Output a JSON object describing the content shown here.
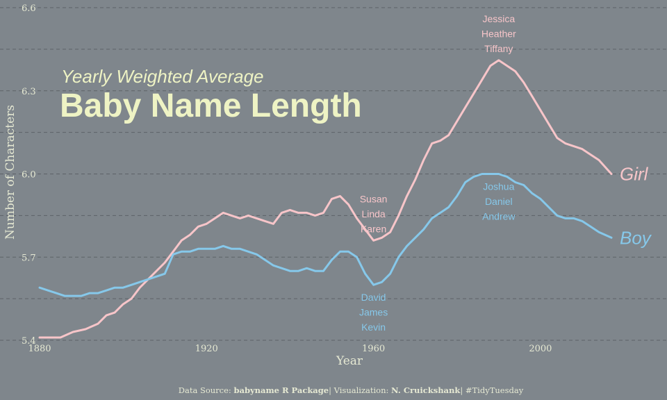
{
  "chart_data": {
    "type": "line",
    "subtitle": "Yearly Weighted Average",
    "title": "Baby Name Length",
    "xlabel": "Year",
    "ylabel": "Number of Characters",
    "xlim": [
      1880,
      2017
    ],
    "ylim": [
      5.4,
      6.6
    ],
    "x_ticks": [
      "1880",
      "1920",
      "1960",
      "2000"
    ],
    "y_ticks": [
      "5.4",
      "5.7",
      "6.0",
      "6.3",
      "6.6"
    ],
    "grid": "horizontal dashed",
    "series": [
      {
        "name": "Girl",
        "color": "#f7c5c9",
        "points": [
          [
            1880,
            5.41
          ],
          [
            1882,
            5.41
          ],
          [
            1885,
            5.41
          ],
          [
            1888,
            5.43
          ],
          [
            1891,
            5.44
          ],
          [
            1894,
            5.46
          ],
          [
            1896,
            5.49
          ],
          [
            1898,
            5.5
          ],
          [
            1900,
            5.53
          ],
          [
            1902,
            5.55
          ],
          [
            1904,
            5.59
          ],
          [
            1906,
            5.62
          ],
          [
            1908,
            5.65
          ],
          [
            1910,
            5.68
          ],
          [
            1912,
            5.72
          ],
          [
            1914,
            5.76
          ],
          [
            1916,
            5.78
          ],
          [
            1918,
            5.81
          ],
          [
            1920,
            5.82
          ],
          [
            1922,
            5.84
          ],
          [
            1924,
            5.86
          ],
          [
            1926,
            5.85
          ],
          [
            1928,
            5.84
          ],
          [
            1930,
            5.85
          ],
          [
            1932,
            5.84
          ],
          [
            1934,
            5.83
          ],
          [
            1936,
            5.82
          ],
          [
            1938,
            5.86
          ],
          [
            1940,
            5.87
          ],
          [
            1942,
            5.86
          ],
          [
            1944,
            5.86
          ],
          [
            1946,
            5.85
          ],
          [
            1948,
            5.86
          ],
          [
            1950,
            5.91
          ],
          [
            1952,
            5.92
          ],
          [
            1954,
            5.89
          ],
          [
            1956,
            5.84
          ],
          [
            1958,
            5.8
          ],
          [
            1960,
            5.76
          ],
          [
            1962,
            5.77
          ],
          [
            1964,
            5.79
          ],
          [
            1966,
            5.85
          ],
          [
            1968,
            5.92
          ],
          [
            1970,
            5.98
          ],
          [
            1972,
            6.05
          ],
          [
            1974,
            6.11
          ],
          [
            1976,
            6.12
          ],
          [
            1978,
            6.14
          ],
          [
            1980,
            6.19
          ],
          [
            1982,
            6.24
          ],
          [
            1984,
            6.29
          ],
          [
            1986,
            6.34
          ],
          [
            1988,
            6.39
          ],
          [
            1990,
            6.41
          ],
          [
            1992,
            6.39
          ],
          [
            1994,
            6.37
          ],
          [
            1996,
            6.33
          ],
          [
            1998,
            6.28
          ],
          [
            2000,
            6.23
          ],
          [
            2002,
            6.18
          ],
          [
            2004,
            6.13
          ],
          [
            2006,
            6.11
          ],
          [
            2008,
            6.1
          ],
          [
            2010,
            6.09
          ],
          [
            2012,
            6.07
          ],
          [
            2014,
            6.05
          ],
          [
            2017,
            6.0
          ]
        ]
      },
      {
        "name": "Boy",
        "color": "#86c8ea",
        "points": [
          [
            1880,
            5.59
          ],
          [
            1882,
            5.58
          ],
          [
            1884,
            5.57
          ],
          [
            1886,
            5.56
          ],
          [
            1888,
            5.56
          ],
          [
            1890,
            5.56
          ],
          [
            1892,
            5.57
          ],
          [
            1894,
            5.57
          ],
          [
            1896,
            5.58
          ],
          [
            1898,
            5.59
          ],
          [
            1900,
            5.59
          ],
          [
            1902,
            5.6
          ],
          [
            1904,
            5.61
          ],
          [
            1906,
            5.62
          ],
          [
            1908,
            5.63
          ],
          [
            1910,
            5.64
          ],
          [
            1912,
            5.71
          ],
          [
            1914,
            5.72
          ],
          [
            1916,
            5.72
          ],
          [
            1918,
            5.73
          ],
          [
            1920,
            5.73
          ],
          [
            1922,
            5.73
          ],
          [
            1924,
            5.74
          ],
          [
            1926,
            5.73
          ],
          [
            1928,
            5.73
          ],
          [
            1930,
            5.72
          ],
          [
            1932,
            5.71
          ],
          [
            1934,
            5.69
          ],
          [
            1936,
            5.67
          ],
          [
            1938,
            5.66
          ],
          [
            1940,
            5.65
          ],
          [
            1942,
            5.65
          ],
          [
            1944,
            5.66
          ],
          [
            1946,
            5.65
          ],
          [
            1948,
            5.65
          ],
          [
            1950,
            5.69
          ],
          [
            1952,
            5.72
          ],
          [
            1954,
            5.72
          ],
          [
            1956,
            5.7
          ],
          [
            1958,
            5.64
          ],
          [
            1960,
            5.6
          ],
          [
            1962,
            5.61
          ],
          [
            1964,
            5.64
          ],
          [
            1966,
            5.7
          ],
          [
            1968,
            5.74
          ],
          [
            1970,
            5.77
          ],
          [
            1972,
            5.8
          ],
          [
            1974,
            5.84
          ],
          [
            1976,
            5.86
          ],
          [
            1978,
            5.88
          ],
          [
            1980,
            5.92
          ],
          [
            1982,
            5.97
          ],
          [
            1984,
            5.99
          ],
          [
            1986,
            6.0
          ],
          [
            1988,
            6.0
          ],
          [
            1990,
            6.0
          ],
          [
            1992,
            5.99
          ],
          [
            1994,
            5.97
          ],
          [
            1996,
            5.96
          ],
          [
            1998,
            5.93
          ],
          [
            2000,
            5.91
          ],
          [
            2002,
            5.88
          ],
          [
            2004,
            5.85
          ],
          [
            2006,
            5.84
          ],
          [
            2008,
            5.84
          ],
          [
            2010,
            5.83
          ],
          [
            2012,
            5.81
          ],
          [
            2014,
            5.79
          ],
          [
            2017,
            5.77
          ]
        ]
      }
    ],
    "annotations": [
      {
        "name": "girl-1990-names",
        "x": 1990,
        "y": 6.41,
        "lines": [
          "Jessica",
          "Heather",
          "Tiffany"
        ],
        "color": "#f7c5c9"
      },
      {
        "name": "girl-1960-names",
        "x": 1960,
        "y": 5.76,
        "lines": [
          "Susan",
          "Linda",
          "Karen"
        ],
        "color": "#f7c5c9"
      },
      {
        "name": "boy-1990-names",
        "x": 1990,
        "y": 6.0,
        "lines": [
          "Joshua",
          "Daniel",
          "Andrew"
        ],
        "color": "#86c8ea"
      },
      {
        "name": "boy-1960-names",
        "x": 1960,
        "y": 5.6,
        "lines": [
          "David",
          "James",
          "Kevin"
        ],
        "color": "#86c8ea"
      }
    ]
  },
  "caption": {
    "prefix": "Data Source: ",
    "source": "babyname R Package",
    "middle": "| Visualization: ",
    "author": "N. Cruickshank",
    "suffix": "| #TidyTuesday"
  }
}
